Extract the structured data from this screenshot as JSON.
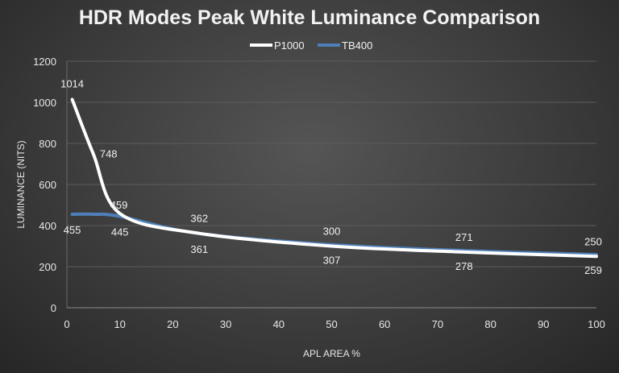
{
  "chart_data": {
    "type": "line",
    "title": "HDR Modes Peak White Luminance Comparison",
    "xlabel": "APL AREA %",
    "ylabel": "LUMINANCE (NITS)",
    "xlim": [
      0,
      100
    ],
    "ylim": [
      0,
      1200
    ],
    "xticks": [
      0,
      10,
      20,
      30,
      40,
      50,
      60,
      70,
      80,
      90,
      100
    ],
    "yticks": [
      0,
      200,
      400,
      600,
      800,
      1000,
      1200
    ],
    "grid": "horizontal",
    "legend": "top",
    "series": [
      {
        "name": "P1000",
        "color": "#ffffff",
        "x": [
          1,
          5,
          10,
          25,
          50,
          75,
          100
        ],
        "values": [
          1014,
          748,
          459,
          362,
          300,
          271,
          250
        ],
        "labels": [
          1014,
          748,
          459,
          362,
          300,
          271,
          250
        ],
        "label_pos": "above"
      },
      {
        "name": "TB400",
        "color": "#4f7fb8",
        "x": [
          1,
          5,
          10,
          25,
          50,
          75,
          100
        ],
        "values": [
          455,
          455,
          445,
          361,
          307,
          278,
          259
        ],
        "labels_x": [
          1,
          10,
          25,
          50,
          75,
          100
        ],
        "labels": [
          455,
          445,
          361,
          307,
          278,
          259
        ],
        "label_pos": "below"
      }
    ]
  }
}
